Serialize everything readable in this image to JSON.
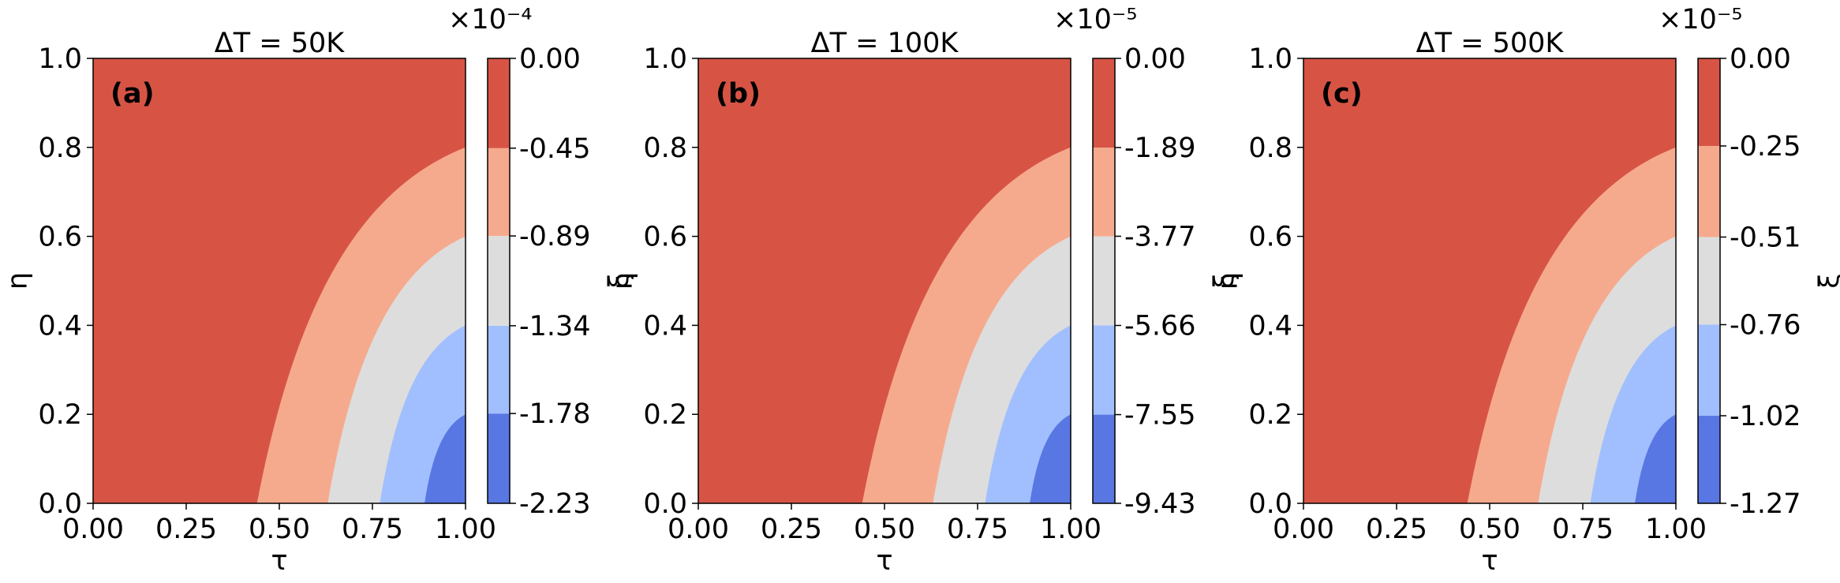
{
  "chart_data": [
    {
      "type": "contourf",
      "panel_label": "(a)",
      "title": "ΔT = 50K",
      "xlabel": "τ",
      "ylabel": "η",
      "xlim": [
        0,
        1
      ],
      "ylim": [
        0,
        1
      ],
      "x_ticks": [
        "0.00",
        "0.25",
        "0.50",
        "0.75",
        "1.00"
      ],
      "y_ticks": [
        "0.0",
        "0.2",
        "0.4",
        "0.6",
        "0.8",
        "1.0"
      ],
      "colorbar": {
        "label": "ξ",
        "offset_text": "×10⁻⁴",
        "levels": [
          -2.23,
          -1.78,
          -1.34,
          -0.89,
          -0.45,
          0.0
        ],
        "tick_labels": [
          "-2.23",
          "-1.78",
          "-1.34",
          "-0.89",
          "-0.45",
          "0.00"
        ],
        "colors": [
          "#5977e3",
          "#a1bffe",
          "#dddddd",
          "#f6aa8d",
          "#d75445"
        ]
      },
      "contour_boundaries": [
        {
          "level": "-0.45",
          "tau_at_eta0": 0.44,
          "eta_at_tau1": 0.8
        },
        {
          "level": "-0.89",
          "tau_at_eta0": 0.63,
          "eta_at_tau1": 0.6
        },
        {
          "level": "-1.34",
          "tau_at_eta0": 0.77,
          "eta_at_tau1": 0.4
        },
        {
          "level": "-1.78",
          "tau_at_eta0": 0.89,
          "eta_at_tau1": 0.2
        }
      ]
    },
    {
      "type": "contourf",
      "panel_label": "(b)",
      "title": "ΔT = 100K",
      "xlabel": "τ",
      "ylabel": "η",
      "xlim": [
        0,
        1
      ],
      "ylim": [
        0,
        1
      ],
      "x_ticks": [
        "0.00",
        "0.25",
        "0.50",
        "0.75",
        "1.00"
      ],
      "y_ticks": [
        "0.0",
        "0.2",
        "0.4",
        "0.6",
        "0.8",
        "1.0"
      ],
      "colorbar": {
        "label": "ξ",
        "offset_text": "×10⁻⁵",
        "levels": [
          -9.43,
          -7.55,
          -5.66,
          -3.77,
          -1.89,
          0.0
        ],
        "tick_labels": [
          "-9.43",
          "-7.55",
          "-5.66",
          "-3.77",
          "-1.89",
          "0.00"
        ],
        "colors": [
          "#5977e3",
          "#a1bffe",
          "#dddddd",
          "#f6aa8d",
          "#d75445"
        ]
      },
      "contour_boundaries": [
        {
          "level": "-1.89",
          "tau_at_eta0": 0.44,
          "eta_at_tau1": 0.8
        },
        {
          "level": "-3.77",
          "tau_at_eta0": 0.63,
          "eta_at_tau1": 0.6
        },
        {
          "level": "-5.66",
          "tau_at_eta0": 0.77,
          "eta_at_tau1": 0.4
        },
        {
          "level": "-7.55",
          "tau_at_eta0": 0.89,
          "eta_at_tau1": 0.2
        }
      ]
    },
    {
      "type": "contourf",
      "panel_label": "(c)",
      "title": "ΔT = 500K",
      "xlabel": "τ",
      "ylabel": "η",
      "xlim": [
        0,
        1
      ],
      "ylim": [
        0,
        1
      ],
      "x_ticks": [
        "0.00",
        "0.25",
        "0.50",
        "0.75",
        "1.00"
      ],
      "y_ticks": [
        "0.0",
        "0.2",
        "0.4",
        "0.6",
        "0.8",
        "1.0"
      ],
      "colorbar": {
        "label": "ξ",
        "offset_text": "×10⁻⁵",
        "levels": [
          -1.27,
          -1.02,
          -0.76,
          -0.51,
          -0.25,
          0.0
        ],
        "tick_labels": [
          "-1.27",
          "-1.02",
          "-0.76",
          "-0.51",
          "-0.25",
          "0.00"
        ],
        "colors": [
          "#5977e3",
          "#a1bffe",
          "#dddddd",
          "#f6aa8d",
          "#d75445"
        ]
      },
      "contour_boundaries": [
        {
          "level": "-0.25",
          "tau_at_eta0": 0.44,
          "eta_at_tau1": 0.8
        },
        {
          "level": "-0.51",
          "tau_at_eta0": 0.63,
          "eta_at_tau1": 0.6
        },
        {
          "level": "-0.76",
          "tau_at_eta0": 0.77,
          "eta_at_tau1": 0.4
        },
        {
          "level": "-1.02",
          "tau_at_eta0": 0.89,
          "eta_at_tau1": 0.2
        }
      ]
    }
  ]
}
